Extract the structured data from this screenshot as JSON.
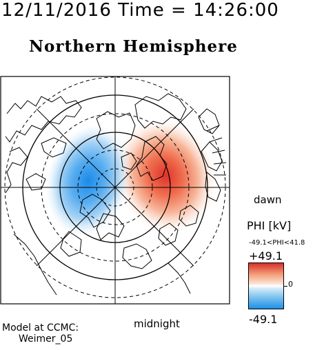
{
  "header": {
    "timestamp": "12/11/2016 Time = 14:26:00",
    "hemisphere": "Northern Hemisphere"
  },
  "orientation": {
    "right_label": "dawn",
    "bottom_label": "midnight"
  },
  "colorbar": {
    "title": "PHI [kV]",
    "range_text": "-49.1<PHI<41.8",
    "max_label": "+49.1",
    "min_label": "-49.1",
    "zero_label": "0",
    "colors": {
      "positive": "#d73027",
      "negative": "#1e8fe6",
      "neutral": "#ffffff"
    }
  },
  "footer": {
    "line1": "Model at CCMC:",
    "line2": "Weimer_05"
  }
}
